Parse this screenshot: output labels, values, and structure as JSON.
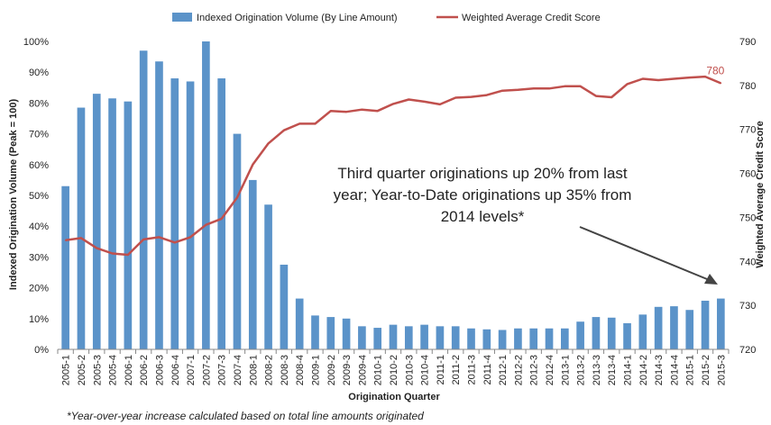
{
  "chart_data": {
    "type": "bar+line",
    "categories": [
      "2005-1",
      "2005-2",
      "2005-3",
      "2005-4",
      "2006-1",
      "2006-2",
      "2006-3",
      "2006-4",
      "2007-1",
      "2007-2",
      "2007-3",
      "2007-4",
      "2008-1",
      "2008-2",
      "2008-3",
      "2008-4",
      "2009-1",
      "2009-2",
      "2009-3",
      "2009-4",
      "2010-1",
      "2010-2",
      "2010-3",
      "2010-4",
      "2011-1",
      "2011-2",
      "2011-3",
      "2011-4",
      "2012-1",
      "2012-2",
      "2012-3",
      "2012-4",
      "2013-1",
      "2013-2",
      "2013-3",
      "2013-4",
      "2014-1",
      "2014-2",
      "2014-3",
      "2014-4",
      "2015-1",
      "2015-2",
      "2015-3"
    ],
    "series": [
      {
        "name": "Indexed Origination Volume (By Line Amount)",
        "type": "bar",
        "axis": "left",
        "color": "#5b93c9",
        "values": [
          53,
          78.5,
          83,
          81.5,
          80.5,
          97,
          93.5,
          88,
          87,
          100,
          88,
          70,
          55,
          47,
          27.5,
          16.5,
          11,
          10.5,
          10,
          7.5,
          7,
          8,
          7.5,
          8,
          7.5,
          7.5,
          6.8,
          6.5,
          6.3,
          6.8,
          6.8,
          6.8,
          6.8,
          9,
          10.5,
          10.3,
          8.5,
          11.3,
          13.8,
          14,
          12.8,
          15.8,
          16.5
        ]
      },
      {
        "name": "Weighted Average Credit Score",
        "type": "line",
        "axis": "right",
        "color": "#c0504d",
        "values": [
          744.8,
          745.3,
          743,
          741.8,
          741.5,
          745,
          745.5,
          744.3,
          745.5,
          748.3,
          749.7,
          754.5,
          762,
          766.8,
          769.8,
          771.3,
          771.3,
          774.2,
          774,
          774.5,
          774.2,
          775.8,
          776.8,
          776.3,
          775.7,
          777.2,
          777.4,
          777.8,
          778.8,
          779,
          779.3,
          779.3,
          779.8,
          779.8,
          777.6,
          777.3,
          780.3,
          781.5,
          781.2,
          781.5,
          781.8,
          782,
          780.5
        ]
      }
    ],
    "xlabel": "Origination Quarter",
    "ylabel_left": "Indexed Origination Volume (Peak = 100)",
    "ylabel_right": "Weighted Average Credit Score",
    "ylim_left": [
      0,
      100
    ],
    "ylim_right": [
      720,
      790
    ],
    "yticks_left": [
      "0%",
      "10%",
      "20%",
      "30%",
      "40%",
      "50%",
      "60%",
      "70%",
      "80%",
      "90%",
      "100%"
    ],
    "yticks_right": [
      "720",
      "730",
      "740",
      "750",
      "760",
      "770",
      "780",
      "790"
    ],
    "end_label": "780",
    "legend_position": "top",
    "annotation": {
      "lines": [
        "Third quarter originations up 20% from last",
        "year; Year-to-Date originations up 35% from",
        "2014 levels*"
      ]
    },
    "footnote": "*Year-over-year increase calculated based on total line amounts originated",
    "grid": false
  }
}
